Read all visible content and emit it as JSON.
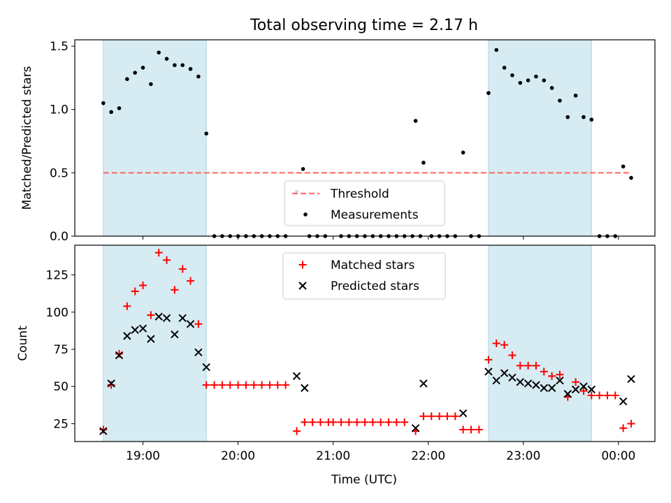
{
  "title": "Total observing time = 2.17 h",
  "xlabel": "Time (UTC)",
  "x_ticks": [
    "19:00",
    "20:00",
    "21:00",
    "22:00",
    "23:00",
    "00:00"
  ],
  "colors": {
    "shade": "#add8e6",
    "threshold": "#ff7070",
    "matched": "#ff0000",
    "predicted": "#000000",
    "measurement": "#000000"
  },
  "chart_data": [
    {
      "type": "scatter",
      "ylabel": "Matched/Predicted stars",
      "xlim": [
        "18:17",
        "00:23"
      ],
      "ylim": [
        0,
        1.55
      ],
      "y_ticks": [
        "0.0",
        "0.5",
        "1.0",
        "1.5"
      ],
      "shaded_intervals": [
        [
          "18:35",
          "19:40"
        ],
        [
          "22:38",
          "23:43"
        ]
      ],
      "threshold": {
        "name": "Threshold",
        "value": 0.5,
        "x_range": [
          "18:35",
          "00:08"
        ]
      },
      "legend": {
        "placement": "lower-center",
        "entries": [
          "Threshold",
          "Measurements"
        ]
      },
      "series": [
        {
          "name": "Measurements",
          "points": [
            [
              "18:35",
              1.05
            ],
            [
              "18:40",
              0.98
            ],
            [
              "18:45",
              1.01
            ],
            [
              "18:50",
              1.24
            ],
            [
              "18:55",
              1.29
            ],
            [
              "19:00",
              1.33
            ],
            [
              "19:05",
              1.2
            ],
            [
              "19:10",
              1.45
            ],
            [
              "19:15",
              1.4
            ],
            [
              "19:20",
              1.35
            ],
            [
              "19:25",
              1.35
            ],
            [
              "19:30",
              1.32
            ],
            [
              "19:35",
              1.26
            ],
            [
              "19:40",
              0.81
            ],
            [
              "19:45",
              0
            ],
            [
              "19:50",
              0
            ],
            [
              "19:55",
              0
            ],
            [
              "20:00",
              0
            ],
            [
              "20:05",
              0
            ],
            [
              "20:10",
              0
            ],
            [
              "20:15",
              0
            ],
            [
              "20:20",
              0
            ],
            [
              "20:25",
              0
            ],
            [
              "20:30",
              0
            ],
            [
              "20:37",
              0.35
            ],
            [
              "20:41",
              0.53
            ],
            [
              "20:45",
              0
            ],
            [
              "20:50",
              0
            ],
            [
              "20:55",
              0
            ],
            [
              "21:05",
              0
            ],
            [
              "21:10",
              0
            ],
            [
              "21:15",
              0
            ],
            [
              "21:20",
              0
            ],
            [
              "21:25",
              0
            ],
            [
              "21:30",
              0
            ],
            [
              "21:35",
              0
            ],
            [
              "21:40",
              0
            ],
            [
              "21:45",
              0
            ],
            [
              "21:50",
              0
            ],
            [
              "21:55",
              0
            ],
            [
              "21:52",
              0.91
            ],
            [
              "21:57",
              0.58
            ],
            [
              "22:02",
              0
            ],
            [
              "22:07",
              0
            ],
            [
              "22:12",
              0
            ],
            [
              "22:17",
              0
            ],
            [
              "22:22",
              0.66
            ],
            [
              "22:27",
              0
            ],
            [
              "22:32",
              0
            ],
            [
              "22:38",
              1.13
            ],
            [
              "22:43",
              1.47
            ],
            [
              "22:48",
              1.33
            ],
            [
              "22:53",
              1.27
            ],
            [
              "22:58",
              1.21
            ],
            [
              "23:03",
              1.23
            ],
            [
              "23:08",
              1.26
            ],
            [
              "23:13",
              1.23
            ],
            [
              "23:18",
              1.17
            ],
            [
              "23:23",
              1.07
            ],
            [
              "23:28",
              0.94
            ],
            [
              "23:33",
              1.11
            ],
            [
              "23:38",
              0.94
            ],
            [
              "23:43",
              0.92
            ],
            [
              "23:48",
              0
            ],
            [
              "23:53",
              0
            ],
            [
              "23:58",
              0
            ],
            [
              "00:03",
              0.55
            ],
            [
              "00:08",
              0.46
            ]
          ]
        }
      ]
    },
    {
      "type": "scatter",
      "ylabel": "Count",
      "xlim": [
        "18:17",
        "00:23"
      ],
      "ylim": [
        13,
        145
      ],
      "y_ticks": [
        "25",
        "50",
        "75",
        "100",
        "125"
      ],
      "shaded_intervals": [
        [
          "18:35",
          "19:40"
        ],
        [
          "22:38",
          "23:43"
        ]
      ],
      "legend": {
        "placement": "upper-center",
        "entries": [
          "Matched stars",
          "Predicted stars"
        ]
      },
      "series": [
        {
          "name": "Matched stars",
          "points": [
            [
              "18:35",
              21
            ],
            [
              "18:40",
              51
            ],
            [
              "18:45",
              72
            ],
            [
              "18:50",
              104
            ],
            [
              "18:55",
              114
            ],
            [
              "19:00",
              118
            ],
            [
              "19:05",
              98
            ],
            [
              "19:10",
              140
            ],
            [
              "19:15",
              135
            ],
            [
              "19:20",
              115
            ],
            [
              "19:25",
              129
            ],
            [
              "19:30",
              121
            ],
            [
              "19:35",
              92
            ],
            [
              "19:40",
              51
            ],
            [
              "19:45",
              51
            ],
            [
              "19:50",
              51
            ],
            [
              "19:55",
              51
            ],
            [
              "20:00",
              51
            ],
            [
              "20:05",
              51
            ],
            [
              "20:10",
              51
            ],
            [
              "20:15",
              51
            ],
            [
              "20:20",
              51
            ],
            [
              "20:25",
              51
            ],
            [
              "20:30",
              51
            ],
            [
              "20:37",
              20
            ],
            [
              "20:42",
              26
            ],
            [
              "20:47",
              26
            ],
            [
              "20:52",
              26
            ],
            [
              "20:57",
              26
            ],
            [
              "21:00",
              26
            ],
            [
              "21:05",
              26
            ],
            [
              "21:10",
              26
            ],
            [
              "21:15",
              26
            ],
            [
              "21:20",
              26
            ],
            [
              "21:25",
              26
            ],
            [
              "21:30",
              26
            ],
            [
              "21:35",
              26
            ],
            [
              "21:40",
              26
            ],
            [
              "21:45",
              26
            ],
            [
              "21:52",
              20
            ],
            [
              "21:57",
              30
            ],
            [
              "22:02",
              30
            ],
            [
              "22:07",
              30
            ],
            [
              "22:12",
              30
            ],
            [
              "22:17",
              30
            ],
            [
              "22:22",
              21
            ],
            [
              "22:27",
              21
            ],
            [
              "22:32",
              21
            ],
            [
              "22:38",
              68
            ],
            [
              "22:43",
              79
            ],
            [
              "22:48",
              78
            ],
            [
              "22:53",
              71
            ],
            [
              "22:58",
              64
            ],
            [
              "23:03",
              64
            ],
            [
              "23:08",
              64
            ],
            [
              "23:13",
              60
            ],
            [
              "23:18",
              57
            ],
            [
              "23:23",
              58
            ],
            [
              "23:28",
              43
            ],
            [
              "23:33",
              53
            ],
            [
              "23:38",
              47
            ],
            [
              "23:43",
              44
            ],
            [
              "23:48",
              44
            ],
            [
              "23:53",
              44
            ],
            [
              "23:58",
              44
            ],
            [
              "00:03",
              22
            ],
            [
              "00:08",
              25
            ]
          ]
        },
        {
          "name": "Predicted stars",
          "points": [
            [
              "18:35",
              20
            ],
            [
              "18:40",
              52
            ],
            [
              "18:45",
              71
            ],
            [
              "18:50",
              84
            ],
            [
              "18:55",
              88
            ],
            [
              "19:00",
              89
            ],
            [
              "19:05",
              82
            ],
            [
              "19:10",
              97
            ],
            [
              "19:15",
              96
            ],
            [
              "19:20",
              85
            ],
            [
              "19:25",
              96
            ],
            [
              "19:30",
              92
            ],
            [
              "19:35",
              73
            ],
            [
              "19:40",
              63
            ],
            [
              "20:37",
              57
            ],
            [
              "20:42",
              49
            ],
            [
              "21:52",
              22
            ],
            [
              "21:57",
              52
            ],
            [
              "22:22",
              32
            ],
            [
              "22:38",
              60
            ],
            [
              "22:43",
              54
            ],
            [
              "22:48",
              59
            ],
            [
              "22:53",
              56
            ],
            [
              "22:58",
              53
            ],
            [
              "23:03",
              52
            ],
            [
              "23:08",
              51
            ],
            [
              "23:13",
              49
            ],
            [
              "23:18",
              49
            ],
            [
              "23:23",
              54
            ],
            [
              "23:28",
              45
            ],
            [
              "23:33",
              48
            ],
            [
              "23:38",
              50
            ],
            [
              "23:43",
              48
            ],
            [
              "00:03",
              40
            ],
            [
              "00:08",
              55
            ]
          ]
        }
      ]
    }
  ]
}
